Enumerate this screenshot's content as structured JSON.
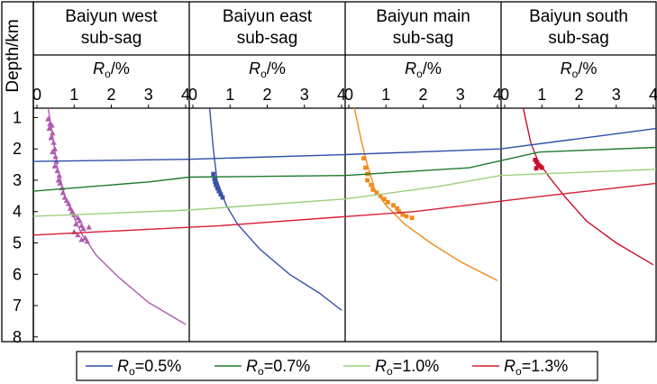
{
  "chart_data": {
    "type": "line",
    "y_axis": {
      "label": "Depth/km",
      "ticks": [
        "1",
        "2",
        "3",
        "4",
        "5",
        "6",
        "7",
        "8"
      ],
      "range": [
        0.7,
        8.15
      ],
      "inverted": true
    },
    "x_axis": {
      "label_main": "R",
      "label_sub": "o",
      "label_unit": "/%",
      "ticks": [
        "0",
        "1",
        "2",
        "3",
        "4"
      ],
      "range": [
        0,
        4
      ]
    },
    "panels": [
      {
        "title_lines": [
          "Baiyun west",
          "sub-sag"
        ],
        "profile_color": "#b05cb0",
        "profile": [
          [
            0.3,
            0.7
          ],
          [
            0.4,
            1.4
          ],
          [
            0.55,
            2.6
          ],
          [
            0.75,
            3.5
          ],
          [
            1.0,
            4.2
          ],
          [
            1.2,
            4.7
          ],
          [
            1.6,
            5.4
          ],
          [
            2.2,
            6.1
          ],
          [
            3.0,
            6.9
          ],
          [
            4.0,
            7.6
          ]
        ],
        "points": [
          [
            0.3,
            1.05
          ],
          [
            0.35,
            1.2
          ],
          [
            0.4,
            1.25
          ],
          [
            0.33,
            1.35
          ],
          [
            0.42,
            1.5
          ],
          [
            0.38,
            1.65
          ],
          [
            0.45,
            1.8
          ],
          [
            0.48,
            2.0
          ],
          [
            0.42,
            2.1
          ],
          [
            0.5,
            2.25
          ],
          [
            0.52,
            2.4
          ],
          [
            0.48,
            2.55
          ],
          [
            0.55,
            2.7
          ],
          [
            0.6,
            2.85
          ],
          [
            0.58,
            3.0
          ],
          [
            0.62,
            3.1
          ],
          [
            0.68,
            3.25
          ],
          [
            0.7,
            3.4
          ],
          [
            0.75,
            3.55
          ],
          [
            0.8,
            3.65
          ],
          [
            0.85,
            3.75
          ],
          [
            0.9,
            3.9
          ],
          [
            0.95,
            4.0
          ],
          [
            1.0,
            4.1
          ],
          [
            1.1,
            4.2
          ],
          [
            1.15,
            4.3
          ],
          [
            1.05,
            4.4
          ],
          [
            1.2,
            4.45
          ],
          [
            1.25,
            4.55
          ],
          [
            1.0,
            4.65
          ],
          [
            1.1,
            4.75
          ],
          [
            1.3,
            4.85
          ],
          [
            1.2,
            4.9
          ],
          [
            1.35,
            4.95
          ],
          [
            1.4,
            4.5
          ]
        ]
      },
      {
        "title_lines": [
          "Baiyun east",
          "sub-sag"
        ],
        "profile_color": "#3a52a6",
        "profile": [
          [
            0.45,
            0.7
          ],
          [
            0.55,
            2.0
          ],
          [
            0.65,
            3.0
          ],
          [
            0.9,
            3.8
          ],
          [
            1.2,
            4.4
          ],
          [
            1.8,
            5.2
          ],
          [
            2.6,
            6.0
          ],
          [
            3.4,
            6.6
          ],
          [
            4.0,
            7.15
          ]
        ],
        "points": [
          [
            0.55,
            2.8
          ],
          [
            0.58,
            2.95
          ],
          [
            0.6,
            3.05
          ],
          [
            0.62,
            3.15
          ],
          [
            0.66,
            3.25
          ],
          [
            0.7,
            3.35
          ],
          [
            0.75,
            3.45
          ],
          [
            0.8,
            3.55
          ]
        ]
      },
      {
        "title_lines": [
          "Baiyun main",
          "sub-sag"
        ],
        "profile_color": "#f28a1e",
        "profile": [
          [
            0.15,
            0.7
          ],
          [
            0.35,
            1.8
          ],
          [
            0.5,
            2.5
          ],
          [
            0.7,
            3.3
          ],
          [
            1.0,
            3.8
          ],
          [
            1.5,
            4.4
          ],
          [
            2.2,
            5.0
          ],
          [
            3.0,
            5.6
          ],
          [
            4.0,
            6.2
          ]
        ],
        "points": [
          [
            0.4,
            2.3
          ],
          [
            0.45,
            2.6
          ],
          [
            0.5,
            2.8
          ],
          [
            0.5,
            3.0
          ],
          [
            0.6,
            3.15
          ],
          [
            0.65,
            3.3
          ],
          [
            0.75,
            3.4
          ],
          [
            0.85,
            3.5
          ],
          [
            0.95,
            3.6
          ],
          [
            1.05,
            3.7
          ],
          [
            1.2,
            3.8
          ],
          [
            1.3,
            3.9
          ],
          [
            1.35,
            4.0
          ],
          [
            1.45,
            4.1
          ],
          [
            1.55,
            4.15
          ],
          [
            1.7,
            4.2
          ]
        ]
      },
      {
        "title_lines": [
          "Baiyun south",
          "sub-sag"
        ],
        "profile_color": "#c8102e",
        "profile": [
          [
            0.5,
            0.7
          ],
          [
            0.7,
            1.8
          ],
          [
            0.9,
            2.4
          ],
          [
            1.2,
            2.9
          ],
          [
            1.6,
            3.5
          ],
          [
            2.2,
            4.3
          ],
          [
            3.0,
            5.0
          ],
          [
            4.0,
            5.7
          ]
        ],
        "points": [
          [
            0.82,
            2.35
          ],
          [
            0.86,
            2.42
          ],
          [
            0.9,
            2.5
          ],
          [
            0.95,
            2.55
          ],
          [
            1.0,
            2.6
          ],
          [
            0.85,
            2.62
          ]
        ]
      }
    ],
    "isolines": [
      {
        "color": "#2e4fa8",
        "points": [
          [
            0,
            2.4
          ],
          [
            1,
            2.33
          ],
          [
            2,
            2.18
          ],
          [
            3,
            2.0
          ],
          [
            4,
            1.35
          ]
        ]
      },
      {
        "color": "#1d7a2c",
        "points": [
          [
            0,
            3.35
          ],
          [
            0.75,
            3.05
          ],
          [
            1,
            2.9
          ],
          [
            2,
            2.85
          ],
          [
            2.8,
            2.6
          ],
          [
            3.25,
            2.1
          ],
          [
            4,
            1.95
          ]
        ]
      },
      {
        "color": "#9ccf7c",
        "points": [
          [
            0,
            4.15
          ],
          [
            1,
            3.95
          ],
          [
            2,
            3.6
          ],
          [
            2.6,
            3.2
          ],
          [
            3,
            2.85
          ],
          [
            4,
            2.65
          ]
        ]
      },
      {
        "color": "#d81e35",
        "points": [
          [
            0,
            4.75
          ],
          [
            1.2,
            4.45
          ],
          [
            2.45,
            4.0
          ],
          [
            3.2,
            3.55
          ],
          [
            4,
            3.1
          ]
        ]
      }
    ],
    "legend": [
      {
        "sym": "R",
        "sub": "o",
        "value": "=0.5%",
        "color": "#2e4fa8"
      },
      {
        "sym": "R",
        "sub": "o",
        "value": "=0.7%",
        "color": "#1d7a2c"
      },
      {
        "sym": "R",
        "sub": "o",
        "value": "=1.0%",
        "color": "#9ccf7c"
      },
      {
        "sym": "R",
        "sub": "o",
        "value": "=1.3%",
        "color": "#d81e35"
      }
    ],
    "legend_placement": "bottom"
  }
}
